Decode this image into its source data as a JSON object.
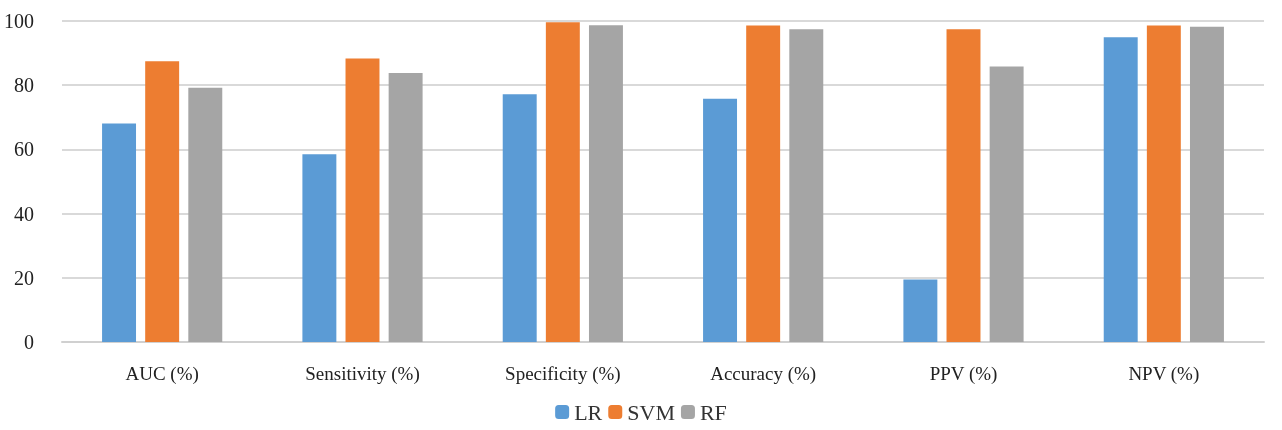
{
  "chart_data": {
    "type": "bar",
    "categories": [
      "AUC (%)",
      "Sensitivity (%)",
      "Specificity (%)",
      "Accuracy (%)",
      "PPV (%)",
      "NPV (%)"
    ],
    "series": [
      {
        "name": "LR",
        "color": "#5b9bd5",
        "values": [
          68.1,
          58.5,
          77.2,
          75.8,
          19.5,
          94.9
        ]
      },
      {
        "name": "SVM",
        "color": "#ed7d31",
        "values": [
          87.5,
          88.3,
          99.6,
          98.6,
          97.4,
          98.6
        ]
      },
      {
        "name": "RF",
        "color": "#a5a5a5",
        "values": [
          79.2,
          83.8,
          98.7,
          97.4,
          85.8,
          98.2
        ]
      }
    ],
    "ylim": [
      0,
      100
    ],
    "yticks": [
      0,
      20,
      40,
      60,
      80,
      100
    ],
    "grid": "y",
    "legend": "bottom"
  }
}
